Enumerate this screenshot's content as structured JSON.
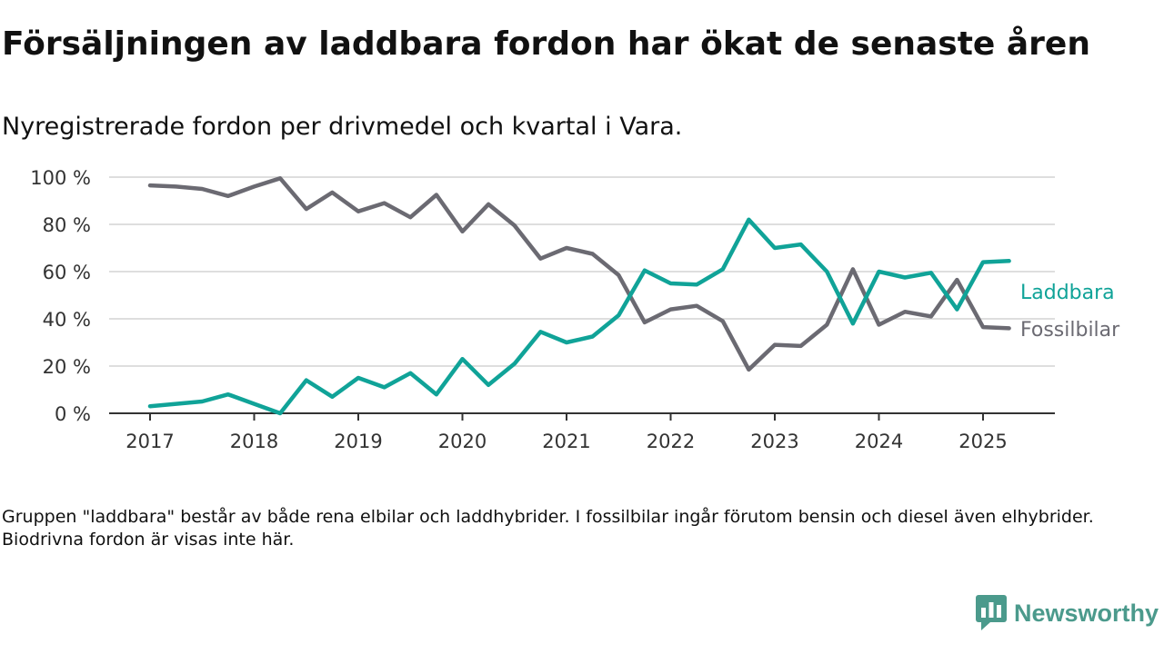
{
  "header": {
    "title": "Försäljningen av laddbara fordon har ökat de senaste åren",
    "subtitle": "Nyregistrerade fordon per drivmedel och kvartal i Vara."
  },
  "footnote": "Gruppen \"laddbara\" består av både rena elbilar och laddhybrider. I fossilbilar ingår förutom bensin och diesel även elhybrider. Biodrivna fordon är visas inte här.",
  "brand": {
    "name": "Newsworthy",
    "icon": "newsworthy-logo-icon",
    "color": "#4b9a8c"
  },
  "chart_data": {
    "type": "line",
    "xlabel": "",
    "ylabel": "",
    "ylim": [
      0,
      100
    ],
    "xlim": [
      2017,
      2025.375
    ],
    "yticks": [
      0,
      20,
      40,
      60,
      80,
      100
    ],
    "ytick_labels": [
      "0 %",
      "20 %",
      "40 %",
      "60 %",
      "80 %",
      "100 %"
    ],
    "xtick_labels": [
      "2017",
      "2018",
      "2019",
      "2020",
      "2021",
      "2022",
      "2023",
      "2024",
      "2025"
    ],
    "grid": true,
    "legend": "inline-right",
    "x": [
      2017,
      2017.25,
      2017.5,
      2017.75,
      2018,
      2018.25,
      2018.5,
      2018.75,
      2019,
      2019.25,
      2019.5,
      2019.75,
      2020,
      2020.25,
      2020.5,
      2020.75,
      2021,
      2021.25,
      2021.5,
      2021.75,
      2022,
      2022.25,
      2022.5,
      2022.75,
      2023,
      2023.25,
      2023.5,
      2023.75,
      2024,
      2024.25,
      2024.5,
      2024.75,
      2025,
      2025.25
    ],
    "series": [
      {
        "name": "Laddbara",
        "color": "#10a398",
        "values": [
          3,
          4,
          5,
          8,
          4,
          0,
          14,
          7,
          15,
          11,
          17,
          8,
          23,
          12,
          21,
          34.5,
          30,
          32.5,
          41.5,
          60.5,
          55,
          54.5,
          61,
          82,
          70,
          71.5,
          60,
          38,
          60,
          57.5,
          59.5,
          44,
          64,
          64.5
        ]
      },
      {
        "name": "Fossilbilar",
        "color": "#6b6a72",
        "values": [
          96.5,
          96,
          95,
          92,
          96,
          99.5,
          86.5,
          93.5,
          85.5,
          89,
          83,
          92.5,
          77,
          88.5,
          79.5,
          65.5,
          70,
          67.5,
          58.5,
          38.5,
          44,
          45.5,
          39,
          18.5,
          29,
          28.5,
          37.5,
          61,
          37.5,
          43,
          41,
          56.5,
          36.5,
          36
        ]
      }
    ]
  }
}
